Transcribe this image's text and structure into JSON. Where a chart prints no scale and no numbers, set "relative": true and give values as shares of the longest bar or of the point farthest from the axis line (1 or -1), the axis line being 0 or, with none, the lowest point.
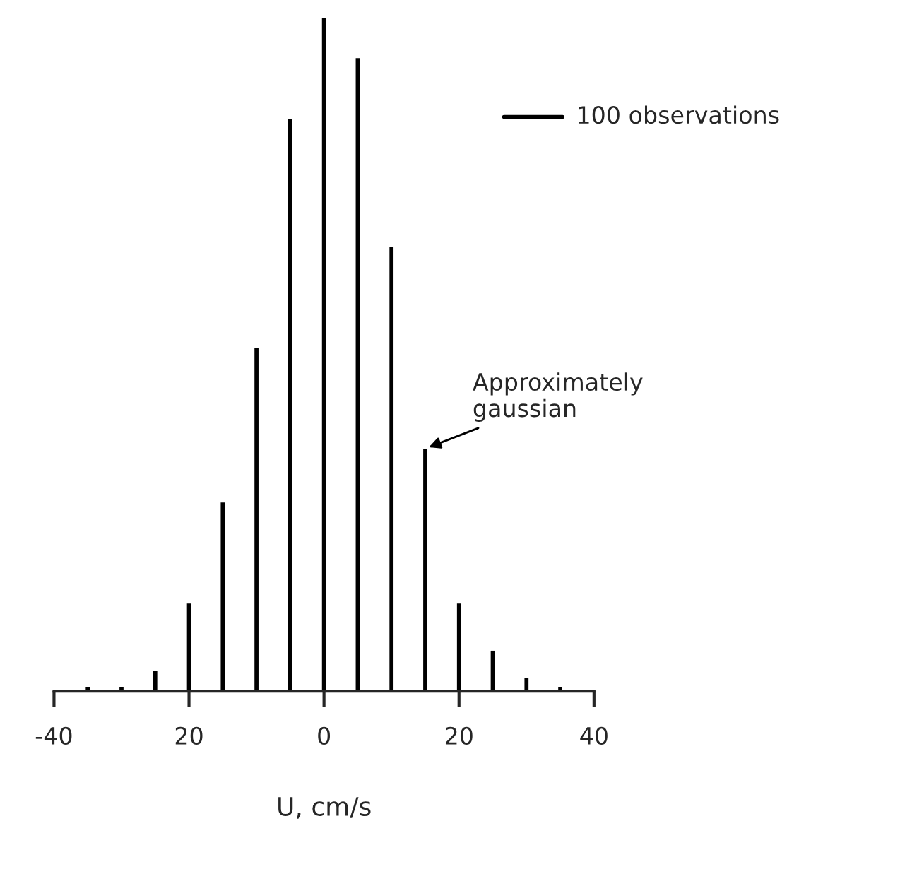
{
  "chart_data": {
    "type": "bar",
    "relative": true,
    "xlabel": "U, cm/s",
    "x": [
      -35,
      -30,
      -25,
      -20,
      -15,
      -10,
      -5,
      0,
      5,
      10,
      15,
      20,
      25,
      30,
      35
    ],
    "values": [
      0.006,
      0.006,
      0.03,
      0.13,
      0.28,
      0.51,
      0.85,
      1,
      0.94,
      0.66,
      0.36,
      0.13,
      0.06,
      0.02,
      0.006
    ],
    "color": "#000000",
    "xlim": [
      -40,
      40
    ],
    "xticks": [
      -40,
      {
        "value": -20,
        "label": "20"
      },
      0,
      20,
      40
    ],
    "annotations": [
      {
        "text": "Approximately\ngaussian",
        "x": 15,
        "y": 0.36
      },
      "100 observations"
    ],
    "grid": false,
    "legend": false
  }
}
